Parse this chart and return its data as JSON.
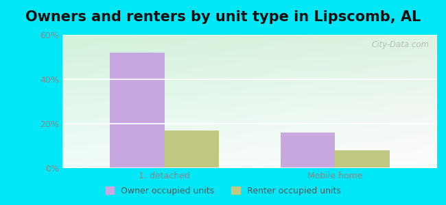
{
  "title": "Owners and renters by unit type in Lipscomb, AL",
  "categories": [
    "1, detached",
    "Mobile home"
  ],
  "owner_values": [
    52,
    16
  ],
  "renter_values": [
    17,
    8
  ],
  "owner_color": "#c9a8e0",
  "renter_color": "#c0c882",
  "owner_label": "Owner occupied units",
  "renter_label": "Renter occupied units",
  "ylim": [
    0,
    60
  ],
  "yticks": [
    0,
    20,
    40,
    60
  ],
  "ytick_labels": [
    "0%",
    "20%",
    "40%",
    "60%"
  ],
  "bar_width": 0.32,
  "title_fontsize": 15,
  "watermark_text": "City-Data.com",
  "outer_bg": "#00e8f8",
  "tick_color": "#888888",
  "label_color": "#888888"
}
